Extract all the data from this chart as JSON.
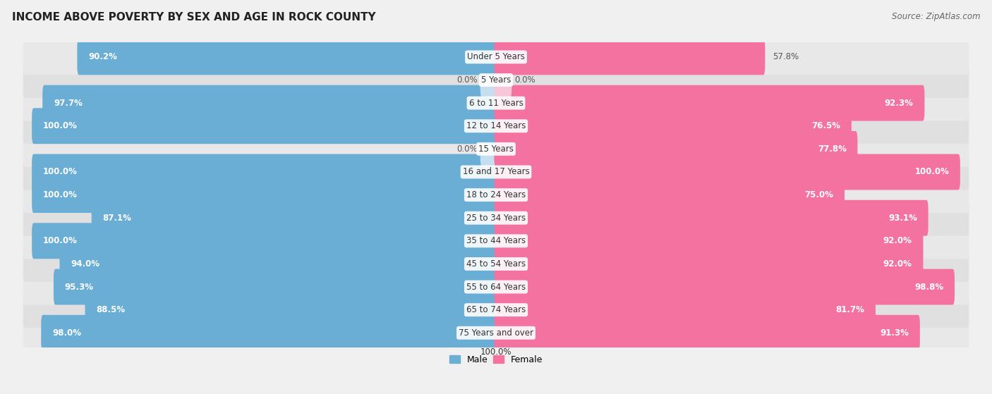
{
  "title": "INCOME ABOVE POVERTY BY SEX AND AGE IN ROCK COUNTY",
  "source": "Source: ZipAtlas.com",
  "categories": [
    "Under 5 Years",
    "5 Years",
    "6 to 11 Years",
    "12 to 14 Years",
    "15 Years",
    "16 and 17 Years",
    "18 to 24 Years",
    "25 to 34 Years",
    "35 to 44 Years",
    "45 to 54 Years",
    "55 to 64 Years",
    "65 to 74 Years",
    "75 Years and over"
  ],
  "male_values": [
    90.2,
    0.0,
    97.7,
    100.0,
    0.0,
    100.0,
    100.0,
    87.1,
    100.0,
    94.0,
    95.3,
    88.5,
    98.0
  ],
  "female_values": [
    57.8,
    0.0,
    92.3,
    76.5,
    77.8,
    100.0,
    75.0,
    93.1,
    92.0,
    92.0,
    98.8,
    81.7,
    91.3
  ],
  "male_color": "#6aadd5",
  "male_color_light": "#c5dff0",
  "female_color": "#f472a0",
  "female_color_light": "#f9c6d8",
  "bg_color": "#f0f0f0",
  "row_color_a": "#e8e8e8",
  "row_color_b": "#e0e0e0",
  "title_fontsize": 11,
  "label_fontsize": 8.5,
  "value_fontsize": 8.5,
  "source_fontsize": 8.5,
  "legend_fontsize": 9,
  "bottom_label": "100.0%"
}
